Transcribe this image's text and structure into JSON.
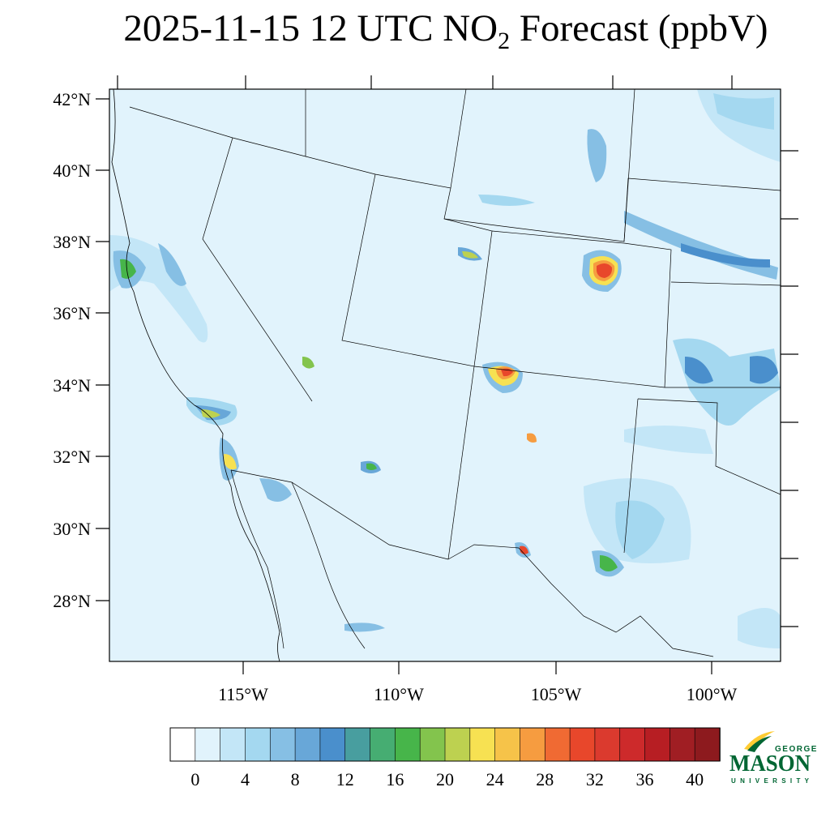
{
  "title": {
    "main": "2025-11-15 12 UTC NO",
    "sub": "2",
    "rest": " Forecast (ppbV)"
  },
  "axes": {
    "lat_labels": [
      "42°N",
      "40°N",
      "38°N",
      "36°N",
      "34°N",
      "32°N",
      "30°N",
      "28°N"
    ],
    "lon_labels": [
      "115°W",
      "110°W",
      "105°W",
      "100°W"
    ]
  },
  "colorbar": {
    "tick_labels": [
      "0",
      "4",
      "8",
      "12",
      "16",
      "20",
      "24",
      "28",
      "32",
      "36",
      "40"
    ],
    "colors": [
      "#ffffff",
      "#e1f3fc",
      "#c3e6f7",
      "#a4d8f0",
      "#86bfe4",
      "#68a7d8",
      "#4a8fcc",
      "#489e9f",
      "#46ad72",
      "#47b54a",
      "#83c44d",
      "#bdd150",
      "#f7e152",
      "#f6c349",
      "#f69c40",
      "#f06a33",
      "#e8472b",
      "#db3a2e",
      "#cd2a2b",
      "#b71e23",
      "#a01e23",
      "#8d1a1e"
    ],
    "range": [
      0,
      44
    ],
    "step": 2
  },
  "logo": {
    "line1": "GEORGE",
    "line2": "MASON",
    "line3": "UNIVERSITY",
    "color_green": "#006633",
    "color_gold": "#ffcc33"
  },
  "map_colors": {
    "background": "#e1f3fc",
    "light_blue": "#c3e6f7",
    "mid_blue": "#86bfe4",
    "dark_blue": "#4a8fcc",
    "teal": "#489e9f",
    "green": "#47b54a",
    "yellow": "#f7e152",
    "orange": "#f69c40",
    "red": "#e8472b"
  }
}
